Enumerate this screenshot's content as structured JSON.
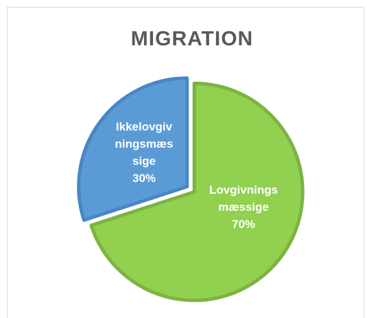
{
  "chart_data": {
    "type": "pie",
    "title": "MIGRATION",
    "categories": [
      "Lovgivningsmæssige",
      "Ikkelovgivningsmæssige"
    ],
    "values": [
      70,
      30
    ],
    "value_labels": [
      "70%",
      "30%"
    ],
    "colors": [
      "#92d050",
      "#5b9bd5"
    ]
  }
}
